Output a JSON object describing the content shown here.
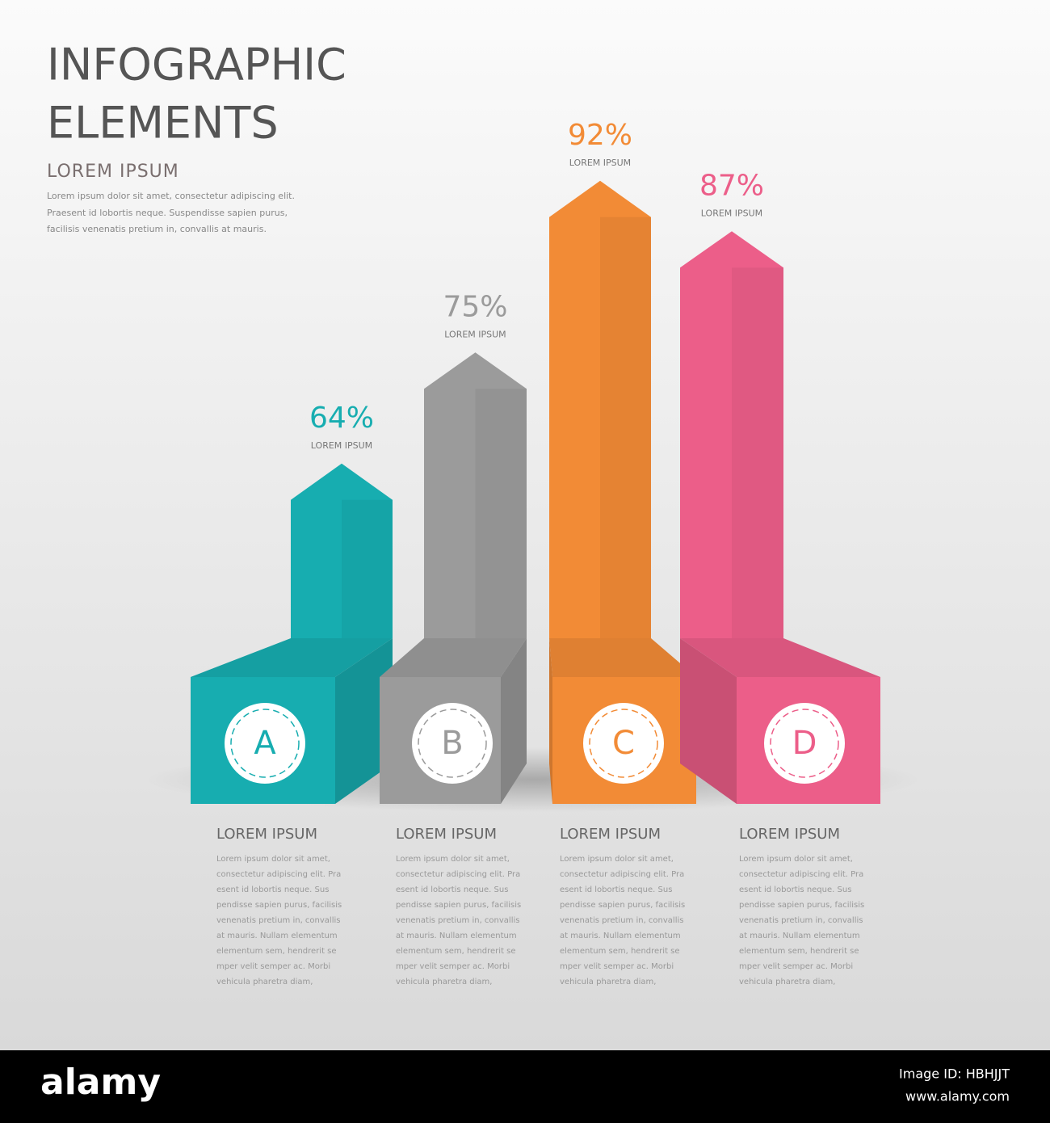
{
  "header": {
    "title_lines": [
      "INFOGRAPHIC",
      "ELEMENTS"
    ],
    "subtitle": "LOREM IPSUM",
    "text_lines": [
      "Lorem ipsum dolor sit amet, consectetur adipiscing elit.",
      "Praesent id lobortis neque. Suspendisse sapien purus,",
      "facilisis venenatis pretium in, convallis at mauris."
    ]
  },
  "chart_data": {
    "type": "arrow-bar",
    "categories": [
      "A",
      "B",
      "C",
      "D"
    ],
    "values": [
      64,
      75,
      92,
      87
    ],
    "value_labels": [
      "64%",
      "75%",
      "92%",
      "87%"
    ],
    "value_captions": [
      "LOREM IPSUM",
      "LOREM IPSUM",
      "LOREM IPSUM",
      "LOREM IPSUM"
    ],
    "colors": [
      "#17adb0",
      "#9b9b9b",
      "#f28b36",
      "#ec5e89"
    ],
    "headings": [
      "LOREM IPSUM",
      "LOREM IPSUM",
      "LOREM IPSUM",
      "LOREM IPSUM"
    ],
    "descriptions": [
      [
        "Lorem ipsum dolor sit amet,",
        "consectetur adipiscing elit. Pra",
        "esent id lobortis neque. Sus",
        "pendisse sapien purus, facilisis",
        "venenatis pretium in, convallis",
        "at mauris. Nullam elementum",
        "elementum sem, hendrerit se",
        "mper velit semper ac. Morbi",
        "vehicula pharetra diam,"
      ],
      [
        "Lorem ipsum dolor sit amet,",
        "consectetur adipiscing elit. Pra",
        "esent id lobortis neque. Sus",
        "pendisse sapien purus, facilisis",
        "venenatis pretium in, convallis",
        "at mauris. Nullam elementum",
        "elementum sem, hendrerit se",
        "mper velit semper ac. Morbi",
        "vehicula pharetra diam,"
      ],
      [
        "Lorem ipsum dolor sit amet,",
        "consectetur adipiscing elit. Pra",
        "esent id lobortis neque. Sus",
        "pendisse sapien purus, facilisis",
        "venenatis pretium in, convallis",
        "at mauris. Nullam elementum",
        "elementum sem, hendrerit se",
        "mper velit semper ac. Morbi",
        "vehicula pharetra diam,"
      ],
      [
        "Lorem ipsum dolor sit amet,",
        "consectetur adipiscing elit. Pra",
        "esent id lobortis neque. Sus",
        "pendisse sapien purus, facilisis",
        "venenatis pretium in, convallis",
        "at mauris. Nullam elementum",
        "elementum sem, hendrerit se",
        "mper velit semper ac. Morbi",
        "vehicula pharetra diam,"
      ]
    ]
  },
  "footer": {
    "brand": "alamy",
    "image_id": "Image ID: HBHJJT",
    "url": "www.alamy.com"
  }
}
